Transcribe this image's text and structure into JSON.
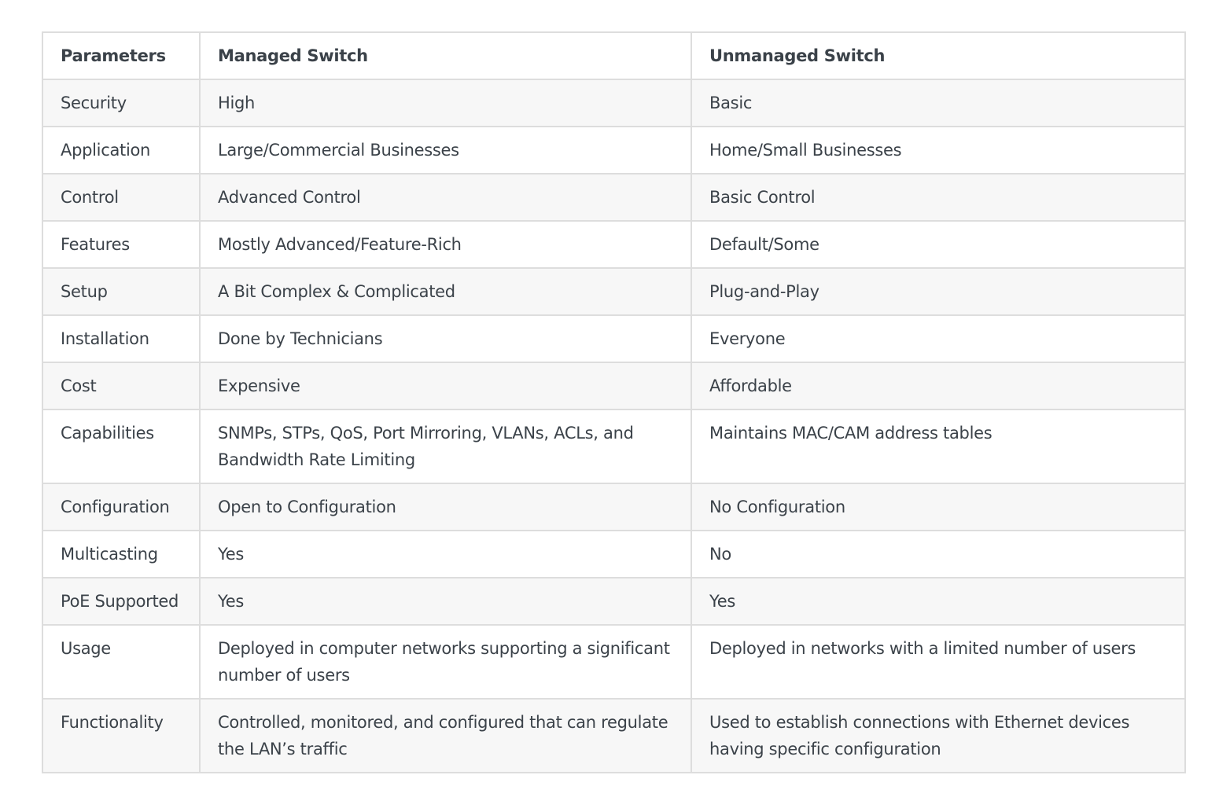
{
  "table": {
    "headers": [
      "Parameters",
      "Managed Switch",
      "Unmanaged Switch"
    ],
    "rows": [
      [
        "Security",
        "High",
        "Basic"
      ],
      [
        "Application",
        "Large/Commercial Businesses",
        "Home/Small Businesses"
      ],
      [
        "Control",
        "Advanced Control",
        "Basic Control"
      ],
      [
        "Features",
        "Mostly Advanced/Feature-Rich",
        "Default/Some"
      ],
      [
        "Setup",
        "A Bit Complex & Complicated",
        "Plug-and-Play"
      ],
      [
        "Installation",
        "Done by Technicians",
        "Everyone"
      ],
      [
        "Cost",
        "Expensive",
        "Affordable"
      ],
      [
        "Capabilities",
        "SNMPs, STPs, QoS, Port Mirroring, VLANs, ACLs, and Bandwidth Rate Limiting",
        "Maintains MAC/CAM address tables"
      ],
      [
        "Configuration",
        "Open to Configuration",
        "No Configuration"
      ],
      [
        "Multicasting",
        "Yes",
        "No"
      ],
      [
        "PoE Supported",
        "Yes",
        "Yes"
      ],
      [
        "Usage",
        "Deployed in computer networks supporting a significant number of users",
        "Deployed in networks with a limited number of users"
      ],
      [
        "Functionality",
        "Controlled, monitored, and configured that can regulate the LAN’s traffic",
        "Used to establish connections with Ethernet devices having specific configuration"
      ]
    ]
  }
}
